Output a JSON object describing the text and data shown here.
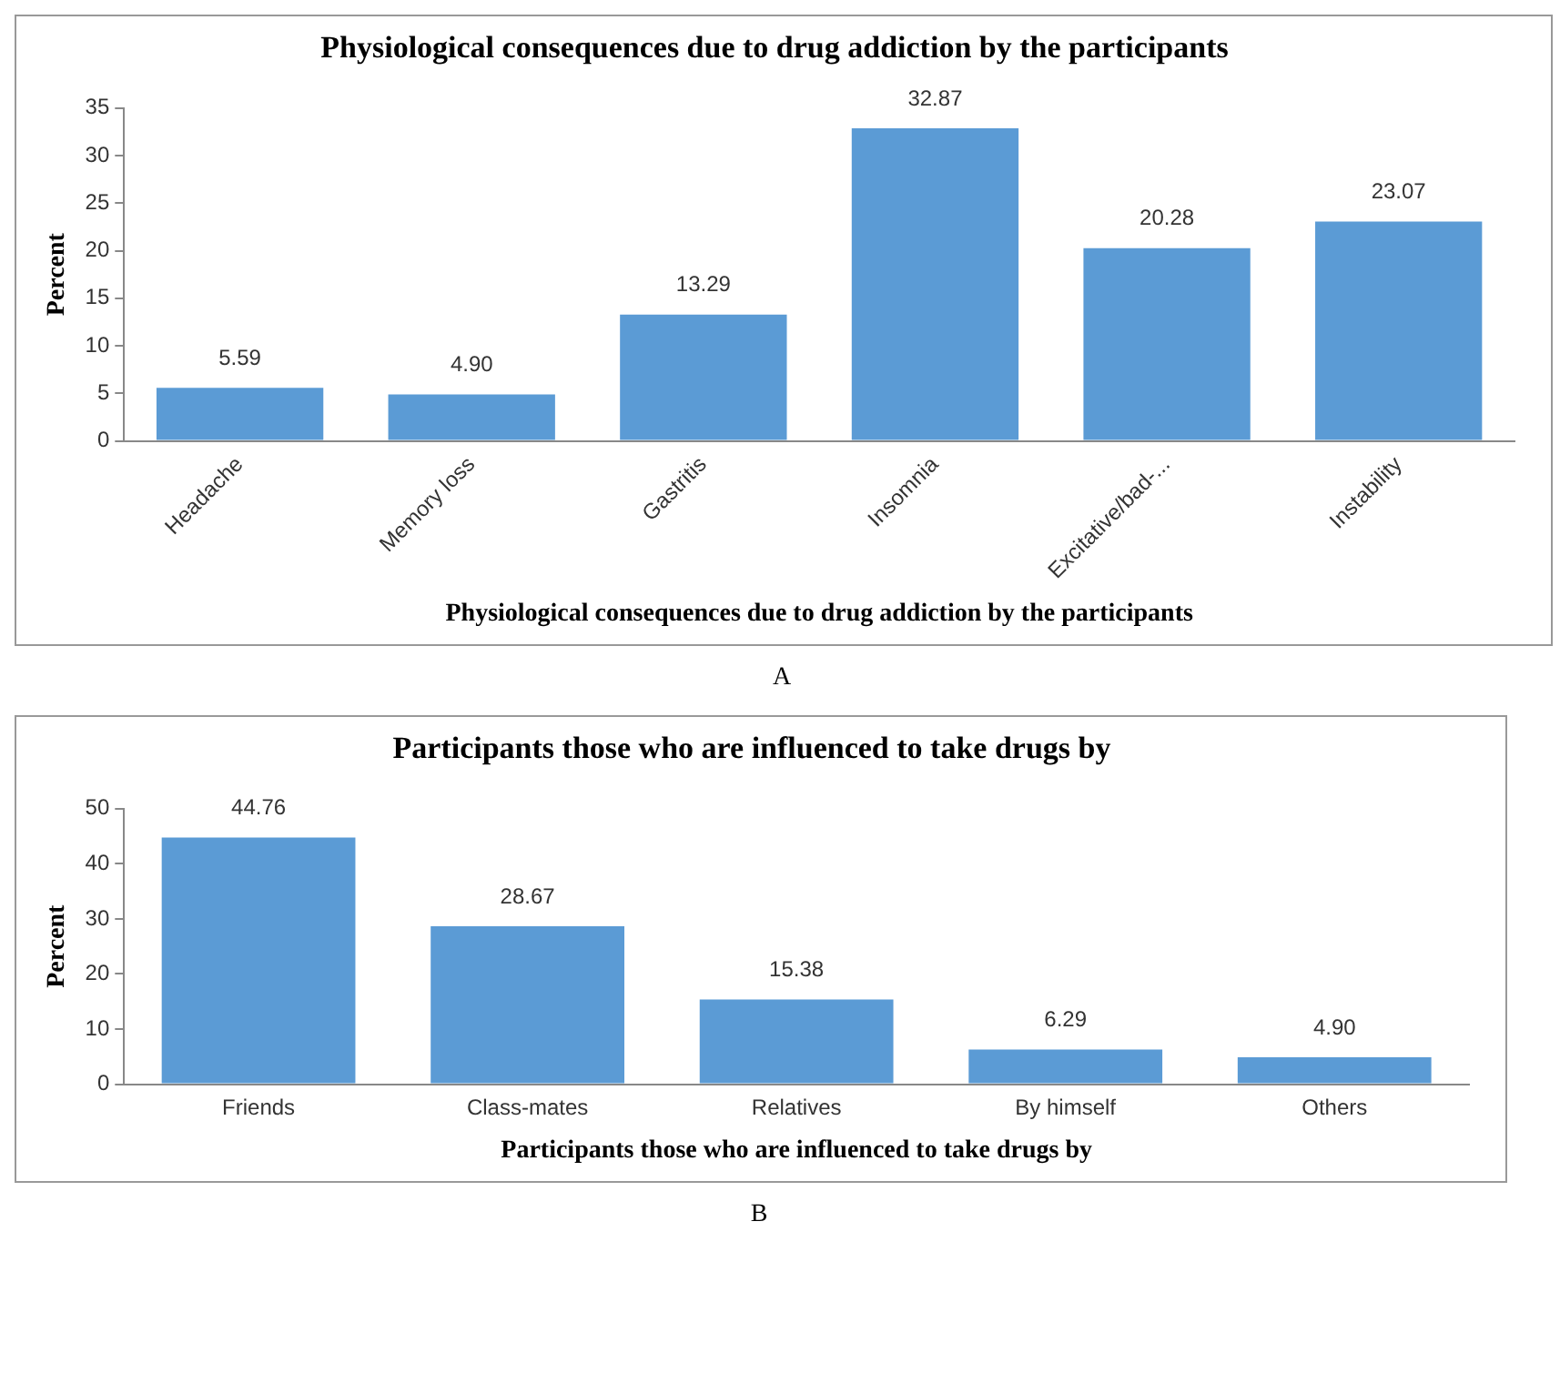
{
  "chart_data": [
    {
      "type": "bar",
      "title": "Physiological consequences due to drug addiction by the participants",
      "xlabel": "Physiological consequences due to drug addiction by the participants",
      "ylabel": "Percent",
      "categories": [
        "Headache",
        "Memory loss",
        "Gastritis",
        "Insomnia",
        "Excitative/bad-...",
        "Instability"
      ],
      "values": [
        5.59,
        4.9,
        13.29,
        32.87,
        20.28,
        23.07
      ],
      "value_labels": [
        "5.59",
        "4.90",
        "13.29",
        "32.87",
        "20.28",
        "23.07"
      ],
      "color": "#5b9bd5",
      "ylim": [
        0,
        35
      ],
      "yticks": [
        0,
        5,
        10,
        15,
        20,
        25,
        30,
        35
      ],
      "annotations": [
        "A"
      ]
    },
    {
      "type": "bar",
      "title": "Participants those who are influenced to take drugs by",
      "xlabel": "Participants those who are influenced to take drugs by",
      "ylabel": "Percent",
      "categories": [
        "Friends",
        "Class-mates",
        "Relatives",
        "By himself",
        "Others"
      ],
      "values": [
        44.76,
        28.67,
        15.38,
        6.29,
        4.9
      ],
      "value_labels": [
        "44.76",
        "28.67",
        "15.38",
        "6.29",
        "4.90"
      ],
      "color": "#5b9bd5",
      "ylim": [
        0,
        50
      ],
      "yticks": [
        0,
        10,
        20,
        30,
        40,
        50
      ],
      "annotations": [
        "B"
      ]
    }
  ]
}
